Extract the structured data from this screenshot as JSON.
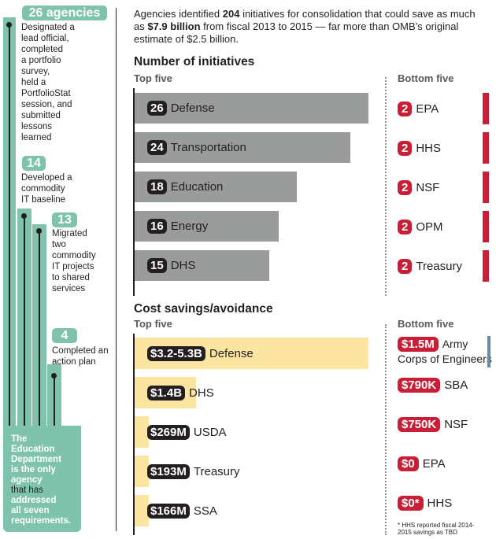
{
  "sidebar": {
    "steps": [
      {
        "count": "26 agencies",
        "text": [
          "Designated a",
          "lead official,",
          "completed",
          "a portfolio",
          "survey,",
          "held a",
          "PortfolioStat",
          "session, and",
          "submitted",
          "lessons",
          "learned"
        ]
      },
      {
        "count": "14",
        "text": [
          "Developed a",
          "commodity",
          "IT baseline"
        ]
      },
      {
        "count": "13",
        "text": [
          "Migrated",
          "two",
          "commodity",
          "IT projects",
          "to shared",
          "services"
        ]
      },
      {
        "count": "4",
        "text": [
          "Completed an",
          "action plan"
        ]
      }
    ],
    "footer": [
      "The",
      "Education",
      "Department",
      "is the only",
      "agency",
      "that has",
      "addressed",
      "all seven",
      "requirements."
    ]
  },
  "intro": {
    "pre": "Agencies identified ",
    "num": "204",
    "mid1": " initiatives for consolidation that could save as much as ",
    "amount": "$7.9 billion",
    "mid2": " from fiscal 2013 to 2015 — far more than OMB’s original estimate of $2.5 billion."
  },
  "colors": {
    "teal": "#7fc3ad",
    "gray_bar": "#9a9b9b",
    "yellow_bar": "#fbe5a0",
    "red": "#c81f37",
    "dark": "#231f20"
  },
  "chart_data": [
    {
      "type": "bar",
      "title": "Number of initiatives",
      "top_label": "Top five",
      "bottom_label": "Bottom five",
      "categories": [
        "Defense",
        "Transportation",
        "Education",
        "Energy",
        "DHS"
      ],
      "values": [
        26,
        24,
        18,
        16,
        15
      ],
      "value_labels": [
        "26",
        "24",
        "18",
        "16",
        "15"
      ],
      "bottom_categories": [
        "EPA",
        "HHS",
        "NSF",
        "OPM",
        "Treasury"
      ],
      "bottom_values": [
        2,
        2,
        2,
        2,
        2
      ],
      "bottom_value_labels": [
        "2",
        "2",
        "2",
        "2",
        "2"
      ]
    },
    {
      "type": "bar",
      "title": "Cost savings/avoidance",
      "top_label": "Top five",
      "bottom_label": "Bottom five",
      "categories": [
        "Defense",
        "DHS",
        "USDA",
        "Treasury",
        "SSA"
      ],
      "values": [
        5.3,
        1.4,
        0.269,
        0.193,
        0.166
      ],
      "value_labels": [
        "$3.2-5.3B",
        "$1.4B",
        "$269M",
        "$193M",
        "$166M"
      ],
      "unit": "$ billions",
      "bottom_categories": [
        "Army Corps of Engineers",
        "SBA",
        "NSF",
        "EPA",
        "HHS"
      ],
      "bottom_values": [
        0.0015,
        0.00079,
        0.00075,
        0,
        0
      ],
      "bottom_value_labels": [
        "$1.5M",
        "$790K",
        "$750K",
        "$0",
        "$0*"
      ],
      "footnote": "* HHS reported fiscal 2014-2015 savings as TBD"
    }
  ]
}
